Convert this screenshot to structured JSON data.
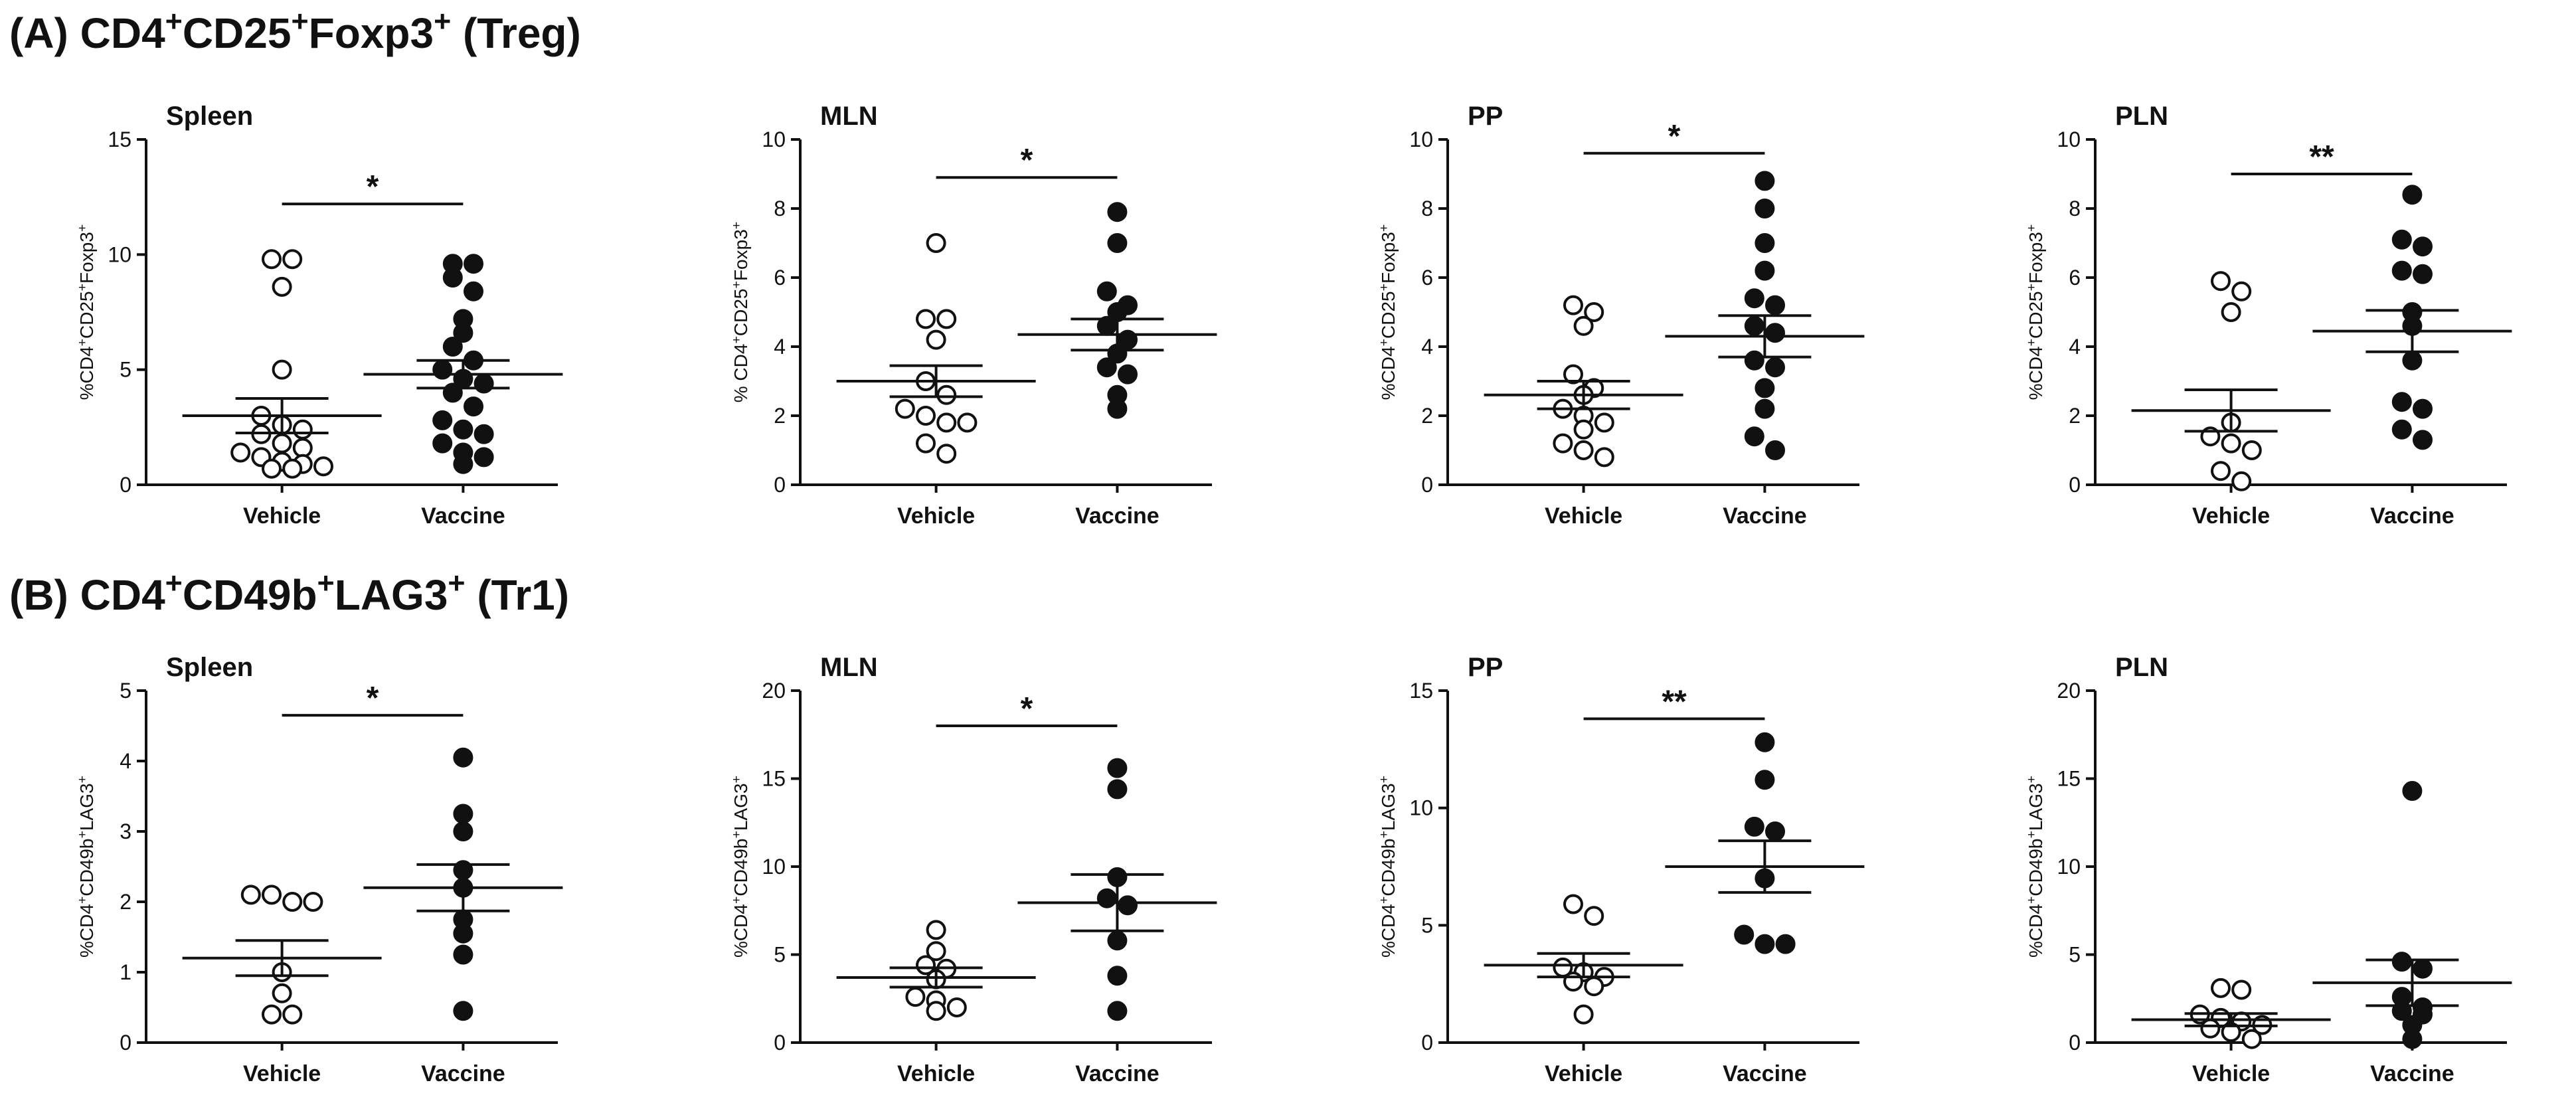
{
  "sections": [
    {
      "id": "A",
      "title_prefix": "(A) CD4",
      "title_parts": [
        {
          "text": "(A) CD4",
          "sup": false
        },
        {
          "text": "+",
          "sup": true
        },
        {
          "text": "CD25",
          "sup": false
        },
        {
          "text": "+",
          "sup": true
        },
        {
          "text": "Foxp3",
          "sup": false
        },
        {
          "text": "+",
          "sup": true
        },
        {
          "text": " (Treg)",
          "sup": false
        }
      ]
    },
    {
      "id": "B",
      "title_parts": [
        {
          "text": "(B) CD4",
          "sup": false
        },
        {
          "text": "+",
          "sup": true
        },
        {
          "text": "CD49b",
          "sup": false
        },
        {
          "text": "+",
          "sup": true
        },
        {
          "text": "LAG3",
          "sup": false
        },
        {
          "text": "+",
          "sup": true
        },
        {
          "text": " (Tr1)",
          "sup": false
        }
      ]
    }
  ],
  "colors": {
    "axis": "#111111",
    "vehicle_fill": "#ffffff",
    "vaccine_fill": "#111111"
  },
  "chart_data": [
    {
      "type": "scatter",
      "section": "A",
      "title": "Spleen",
      "ylabel_parts": [
        {
          "text": "%CD4",
          "sup": false
        },
        {
          "text": "+",
          "sup": true
        },
        {
          "text": "CD25",
          "sup": false
        },
        {
          "text": "+",
          "sup": true
        },
        {
          "text": "Foxp3",
          "sup": false
        },
        {
          "text": "+",
          "sup": true
        }
      ],
      "ylim": [
        0,
        15
      ],
      "yticks": [
        0,
        5,
        10,
        15
      ],
      "categories": [
        "Vehicle",
        "Vaccine"
      ],
      "series": [
        {
          "name": "Vehicle",
          "filled": false,
          "mean": 3.0,
          "sem": 0.75,
          "values": [
            9.8,
            9.8,
            8.6,
            5.0,
            3.0,
            2.6,
            2.4,
            2.2,
            1.8,
            1.6,
            1.4,
            1.2,
            1.0,
            0.9,
            0.8,
            0.7,
            0.7
          ]
        },
        {
          "name": "Vaccine",
          "filled": true,
          "mean": 4.8,
          "sem": 0.6,
          "values": [
            9.6,
            9.6,
            9.0,
            8.4,
            7.2,
            6.6,
            6.0,
            5.4,
            5.0,
            4.6,
            4.4,
            4.0,
            3.4,
            2.8,
            2.4,
            2.2,
            1.8,
            1.4,
            1.2,
            0.9
          ]
        }
      ],
      "significance": {
        "label": "*",
        "level": 12.2
      }
    },
    {
      "type": "scatter",
      "section": "A",
      "title": "MLN",
      "ylabel_parts": [
        {
          "text": "% CD4",
          "sup": false
        },
        {
          "text": "+",
          "sup": true
        },
        {
          "text": "CD25",
          "sup": false
        },
        {
          "text": "+",
          "sup": true
        },
        {
          "text": "Foxp3",
          "sup": false
        },
        {
          "text": "+",
          "sup": true
        }
      ],
      "ylim": [
        0,
        10
      ],
      "yticks": [
        0,
        2,
        4,
        6,
        8,
        10
      ],
      "categories": [
        "Vehicle",
        "Vaccine"
      ],
      "series": [
        {
          "name": "Vehicle",
          "filled": false,
          "mean": 3.0,
          "sem": 0.45,
          "values": [
            7.0,
            4.8,
            4.8,
            4.2,
            3.0,
            2.6,
            2.2,
            2.0,
            1.8,
            1.8,
            1.2,
            0.9
          ]
        },
        {
          "name": "Vaccine",
          "filled": true,
          "mean": 4.35,
          "sem": 0.45,
          "values": [
            7.9,
            7.0,
            5.6,
            5.2,
            5.0,
            4.6,
            4.2,
            3.8,
            3.4,
            3.2,
            2.6,
            2.2
          ]
        }
      ],
      "significance": {
        "label": "*",
        "level": 8.9
      }
    },
    {
      "type": "scatter",
      "section": "A",
      "title": "PP",
      "ylabel_parts": [
        {
          "text": "%CD4",
          "sup": false
        },
        {
          "text": "+",
          "sup": true
        },
        {
          "text": "CD25",
          "sup": false
        },
        {
          "text": "+",
          "sup": true
        },
        {
          "text": "Foxp3",
          "sup": false
        },
        {
          "text": "+",
          "sup": true
        }
      ],
      "ylim": [
        0,
        10
      ],
      "yticks": [
        0,
        2,
        4,
        6,
        8,
        10
      ],
      "categories": [
        "Vehicle",
        "Vaccine"
      ],
      "series": [
        {
          "name": "Vehicle",
          "filled": false,
          "mean": 2.6,
          "sem": 0.4,
          "values": [
            5.2,
            5.0,
            4.6,
            3.2,
            2.8,
            2.6,
            2.2,
            2.0,
            1.8,
            1.6,
            1.2,
            1.0,
            0.8
          ]
        },
        {
          "name": "Vaccine",
          "filled": true,
          "mean": 4.3,
          "sem": 0.6,
          "values": [
            8.8,
            8.0,
            7.0,
            6.2,
            5.4,
            5.2,
            4.6,
            4.4,
            3.6,
            3.4,
            2.8,
            2.2,
            1.4,
            1.0
          ]
        }
      ],
      "significance": {
        "label": "*",
        "level": 9.6
      }
    },
    {
      "type": "scatter",
      "section": "A",
      "title": "PLN",
      "ylabel_parts": [
        {
          "text": "%CD4",
          "sup": false
        },
        {
          "text": "+",
          "sup": true
        },
        {
          "text": "CD25",
          "sup": false
        },
        {
          "text": "+",
          "sup": true
        },
        {
          "text": "Foxp3",
          "sup": false
        },
        {
          "text": "+",
          "sup": true
        }
      ],
      "ylim": [
        0,
        10
      ],
      "yticks": [
        0,
        2,
        4,
        6,
        8,
        10
      ],
      "categories": [
        "Vehicle",
        "Vaccine"
      ],
      "series": [
        {
          "name": "Vehicle",
          "filled": false,
          "mean": 2.15,
          "sem": 0.6,
          "values": [
            5.9,
            5.6,
            5.0,
            1.8,
            1.4,
            1.2,
            1.0,
            0.4,
            0.1
          ]
        },
        {
          "name": "Vaccine",
          "filled": true,
          "mean": 4.45,
          "sem": 0.6,
          "values": [
            8.4,
            7.1,
            6.9,
            6.2,
            6.1,
            5.0,
            4.6,
            3.6,
            2.4,
            2.2,
            1.6,
            1.3
          ]
        }
      ],
      "significance": {
        "label": "**",
        "level": 9.0
      }
    },
    {
      "type": "scatter",
      "section": "B",
      "title": "Spleen",
      "ylabel_parts": [
        {
          "text": "%CD4",
          "sup": false
        },
        {
          "text": "+",
          "sup": true
        },
        {
          "text": "CD49b",
          "sup": false
        },
        {
          "text": "+",
          "sup": true
        },
        {
          "text": "LAG3",
          "sup": false
        },
        {
          "text": "+",
          "sup": true
        }
      ],
      "ylim": [
        0,
        5
      ],
      "yticks": [
        0,
        1,
        2,
        3,
        4,
        5
      ],
      "categories": [
        "Vehicle",
        "Vaccine"
      ],
      "series": [
        {
          "name": "Vehicle",
          "filled": false,
          "mean": 1.2,
          "sem": 0.25,
          "values": [
            2.1,
            2.1,
            2.0,
            2.0,
            1.0,
            0.7,
            0.4,
            0.4
          ]
        },
        {
          "name": "Vaccine",
          "filled": true,
          "mean": 2.2,
          "sem": 0.33,
          "values": [
            4.05,
            3.25,
            3.0,
            2.45,
            2.2,
            1.75,
            1.55,
            1.25,
            0.45
          ]
        }
      ],
      "significance": {
        "label": "*",
        "level": 4.65
      }
    },
    {
      "type": "scatter",
      "section": "B",
      "title": "MLN",
      "ylabel_parts": [
        {
          "text": "%CD4",
          "sup": false
        },
        {
          "text": "+",
          "sup": true
        },
        {
          "text": "CD49b",
          "sup": false
        },
        {
          "text": "+",
          "sup": true
        },
        {
          "text": "LAG3",
          "sup": false
        },
        {
          "text": "+",
          "sup": true
        }
      ],
      "ylim": [
        0,
        20
      ],
      "yticks": [
        0,
        5,
        10,
        15,
        20
      ],
      "categories": [
        "Vehicle",
        "Vaccine"
      ],
      "series": [
        {
          "name": "Vehicle",
          "filled": false,
          "mean": 3.7,
          "sem": 0.55,
          "values": [
            6.4,
            5.2,
            4.4,
            4.2,
            3.6,
            2.6,
            2.4,
            2.0,
            1.8
          ]
        },
        {
          "name": "Vaccine",
          "filled": true,
          "mean": 7.95,
          "sem": 1.6,
          "values": [
            15.6,
            14.4,
            9.4,
            8.2,
            7.8,
            5.8,
            3.8,
            1.8
          ]
        }
      ],
      "significance": {
        "label": "*",
        "level": 18.0
      }
    },
    {
      "type": "scatter",
      "section": "B",
      "title": "PP",
      "ylabel_parts": [
        {
          "text": "%CD4",
          "sup": false
        },
        {
          "text": "+",
          "sup": true
        },
        {
          "text": "CD49b",
          "sup": false
        },
        {
          "text": "+",
          "sup": true
        },
        {
          "text": "LAG3",
          "sup": false
        },
        {
          "text": "+",
          "sup": true
        }
      ],
      "ylim": [
        0,
        15
      ],
      "yticks": [
        0,
        5,
        10,
        15
      ],
      "categories": [
        "Vehicle",
        "Vaccine"
      ],
      "series": [
        {
          "name": "Vehicle",
          "filled": false,
          "mean": 3.3,
          "sem": 0.5,
          "values": [
            5.9,
            5.4,
            3.2,
            3.0,
            2.8,
            2.6,
            2.4,
            1.2
          ]
        },
        {
          "name": "Vaccine",
          "filled": true,
          "mean": 7.5,
          "sem": 1.1,
          "values": [
            12.8,
            11.2,
            9.2,
            9.0,
            7.0,
            4.6,
            4.2,
            4.2
          ]
        }
      ],
      "significance": {
        "label": "**",
        "level": 13.8
      }
    },
    {
      "type": "scatter",
      "section": "B",
      "title": "PLN",
      "ylabel_parts": [
        {
          "text": "%CD4",
          "sup": false
        },
        {
          "text": "+",
          "sup": true
        },
        {
          "text": "CD49b",
          "sup": false
        },
        {
          "text": "+",
          "sup": true
        },
        {
          "text": "LAG3",
          "sup": false
        },
        {
          "text": "+",
          "sup": true
        }
      ],
      "ylim": [
        0,
        20
      ],
      "yticks": [
        0,
        5,
        10,
        15,
        20
      ],
      "categories": [
        "Vehicle",
        "Vaccine"
      ],
      "series": [
        {
          "name": "Vehicle",
          "filled": false,
          "mean": 1.3,
          "sem": 0.35,
          "values": [
            3.1,
            3.0,
            1.6,
            1.4,
            1.2,
            1.0,
            0.8,
            0.6,
            0.2
          ]
        },
        {
          "name": "Vaccine",
          "filled": true,
          "mean": 3.4,
          "sem": 1.3,
          "values": [
            14.3,
            4.6,
            4.2,
            2.6,
            2.0,
            1.8,
            1.6,
            1.0,
            0.2
          ]
        }
      ],
      "significance": null
    }
  ]
}
